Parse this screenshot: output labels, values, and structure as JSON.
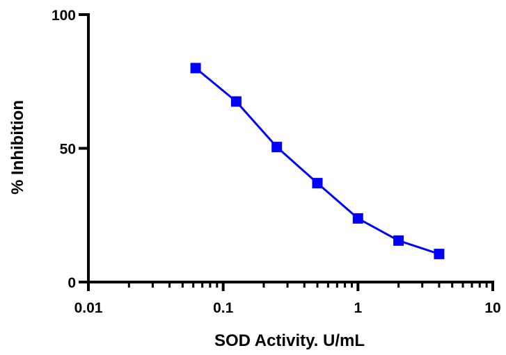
{
  "chart_data": {
    "type": "line",
    "title": "",
    "xlabel": "SOD Activity. U/mL",
    "ylabel": "% Inhibition",
    "x_scale": "log",
    "xlim": [
      0.01,
      10
    ],
    "ylim": [
      0,
      100
    ],
    "x_ticks": [
      {
        "value": 0.01,
        "label": "0.01"
      },
      {
        "value": 0.1,
        "label": "0.1"
      },
      {
        "value": 1,
        "label": "1"
      },
      {
        "value": 10,
        "label": "10"
      }
    ],
    "y_ticks": [
      {
        "value": 0,
        "label": "0"
      },
      {
        "value": 50,
        "label": "50"
      },
      {
        "value": 100,
        "label": "100"
      }
    ],
    "grid": false,
    "legend": "none",
    "series": [
      {
        "color": "#0000ff",
        "marker": "square",
        "x": [
          0.0625,
          0.125,
          0.25,
          0.5,
          1,
          2,
          4
        ],
        "y": [
          80,
          67.5,
          50.5,
          37,
          23.8,
          15.5,
          10.5
        ]
      }
    ]
  }
}
